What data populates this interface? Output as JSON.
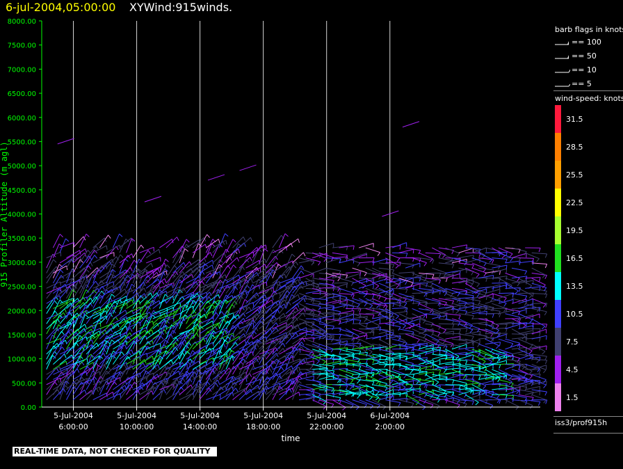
{
  "header": {
    "date_time": "6-jul-2004,05:00:00",
    "product": "XYWind:915winds."
  },
  "chart_data": {
    "type": "wind-barb time-height",
    "ylabel": "915 Profiler Altitude (m agl)",
    "xlabel": "time",
    "ylim": [
      0,
      8000
    ],
    "y_ticks": [
      "0.00",
      "500.00",
      "1000.00",
      "1500.00",
      "2000.00",
      "2500.00",
      "3000.00",
      "3500.00",
      "4000.00",
      "4500.00",
      "5000.00",
      "5500.00",
      "6000.00",
      "6500.00",
      "7000.00",
      "7500.00",
      "8000.00"
    ],
    "y_tick_values": [
      0,
      500,
      1000,
      1500,
      2000,
      2500,
      3000,
      3500,
      4000,
      4500,
      5000,
      5500,
      6000,
      6500,
      7000,
      7500,
      8000
    ],
    "x_range_hours": [
      4.0,
      35.5
    ],
    "x_ticks": [
      {
        "hour": 6,
        "date": "5-Jul-2004",
        "time": "6:00:00"
      },
      {
        "hour": 10,
        "date": "5-Jul-2004",
        "time": "10:00:00"
      },
      {
        "hour": 14,
        "date": "5-Jul-2004",
        "time": "14:00:00"
      },
      {
        "hour": 18,
        "date": "5-Jul-2004",
        "time": "18:00:00"
      },
      {
        "hour": 22,
        "date": "5-Jul-2004",
        "time": "22:00:00"
      },
      {
        "hour": 26,
        "date": "6-Jul-2004",
        "time": "2:00:00"
      }
    ],
    "grid": "vertical lines at x ticks",
    "axis_color": "#00ff00"
  },
  "legend": {
    "barb_title": "barb flags in knots",
    "barbs": [
      {
        "label": "== 100",
        "kind": "flag100"
      },
      {
        "label": "== 50",
        "kind": "flag50"
      },
      {
        "label": "== 10",
        "kind": "barb10"
      },
      {
        "label": "== 5",
        "kind": "barb5"
      }
    ],
    "speed_title": "wind-speed: knots",
    "speed_bins": [
      {
        "label": "31.5",
        "color": "#ff1a3c"
      },
      {
        "label": "28.5",
        "color": "#ff7f00"
      },
      {
        "label": "25.5",
        "color": "#ff9f00"
      },
      {
        "label": "22.5",
        "color": "#ffff00"
      },
      {
        "label": "19.5",
        "color": "#a8ff30"
      },
      {
        "label": "16.5",
        "color": "#20e020"
      },
      {
        "label": "13.5",
        "color": "#00ffff"
      },
      {
        "label": "10.5",
        "color": "#4040ff"
      },
      {
        "label": "7.5",
        "color": "#404070"
      },
      {
        "label": "4.5",
        "color": "#a020f0"
      },
      {
        "label": "1.5",
        "color": "#ee82ee"
      }
    ]
  },
  "footer": {
    "qc_notice": "REAL-TIME DATA, NOT CHECKED FOR QUALITY",
    "source": "iss3/prof915h"
  }
}
